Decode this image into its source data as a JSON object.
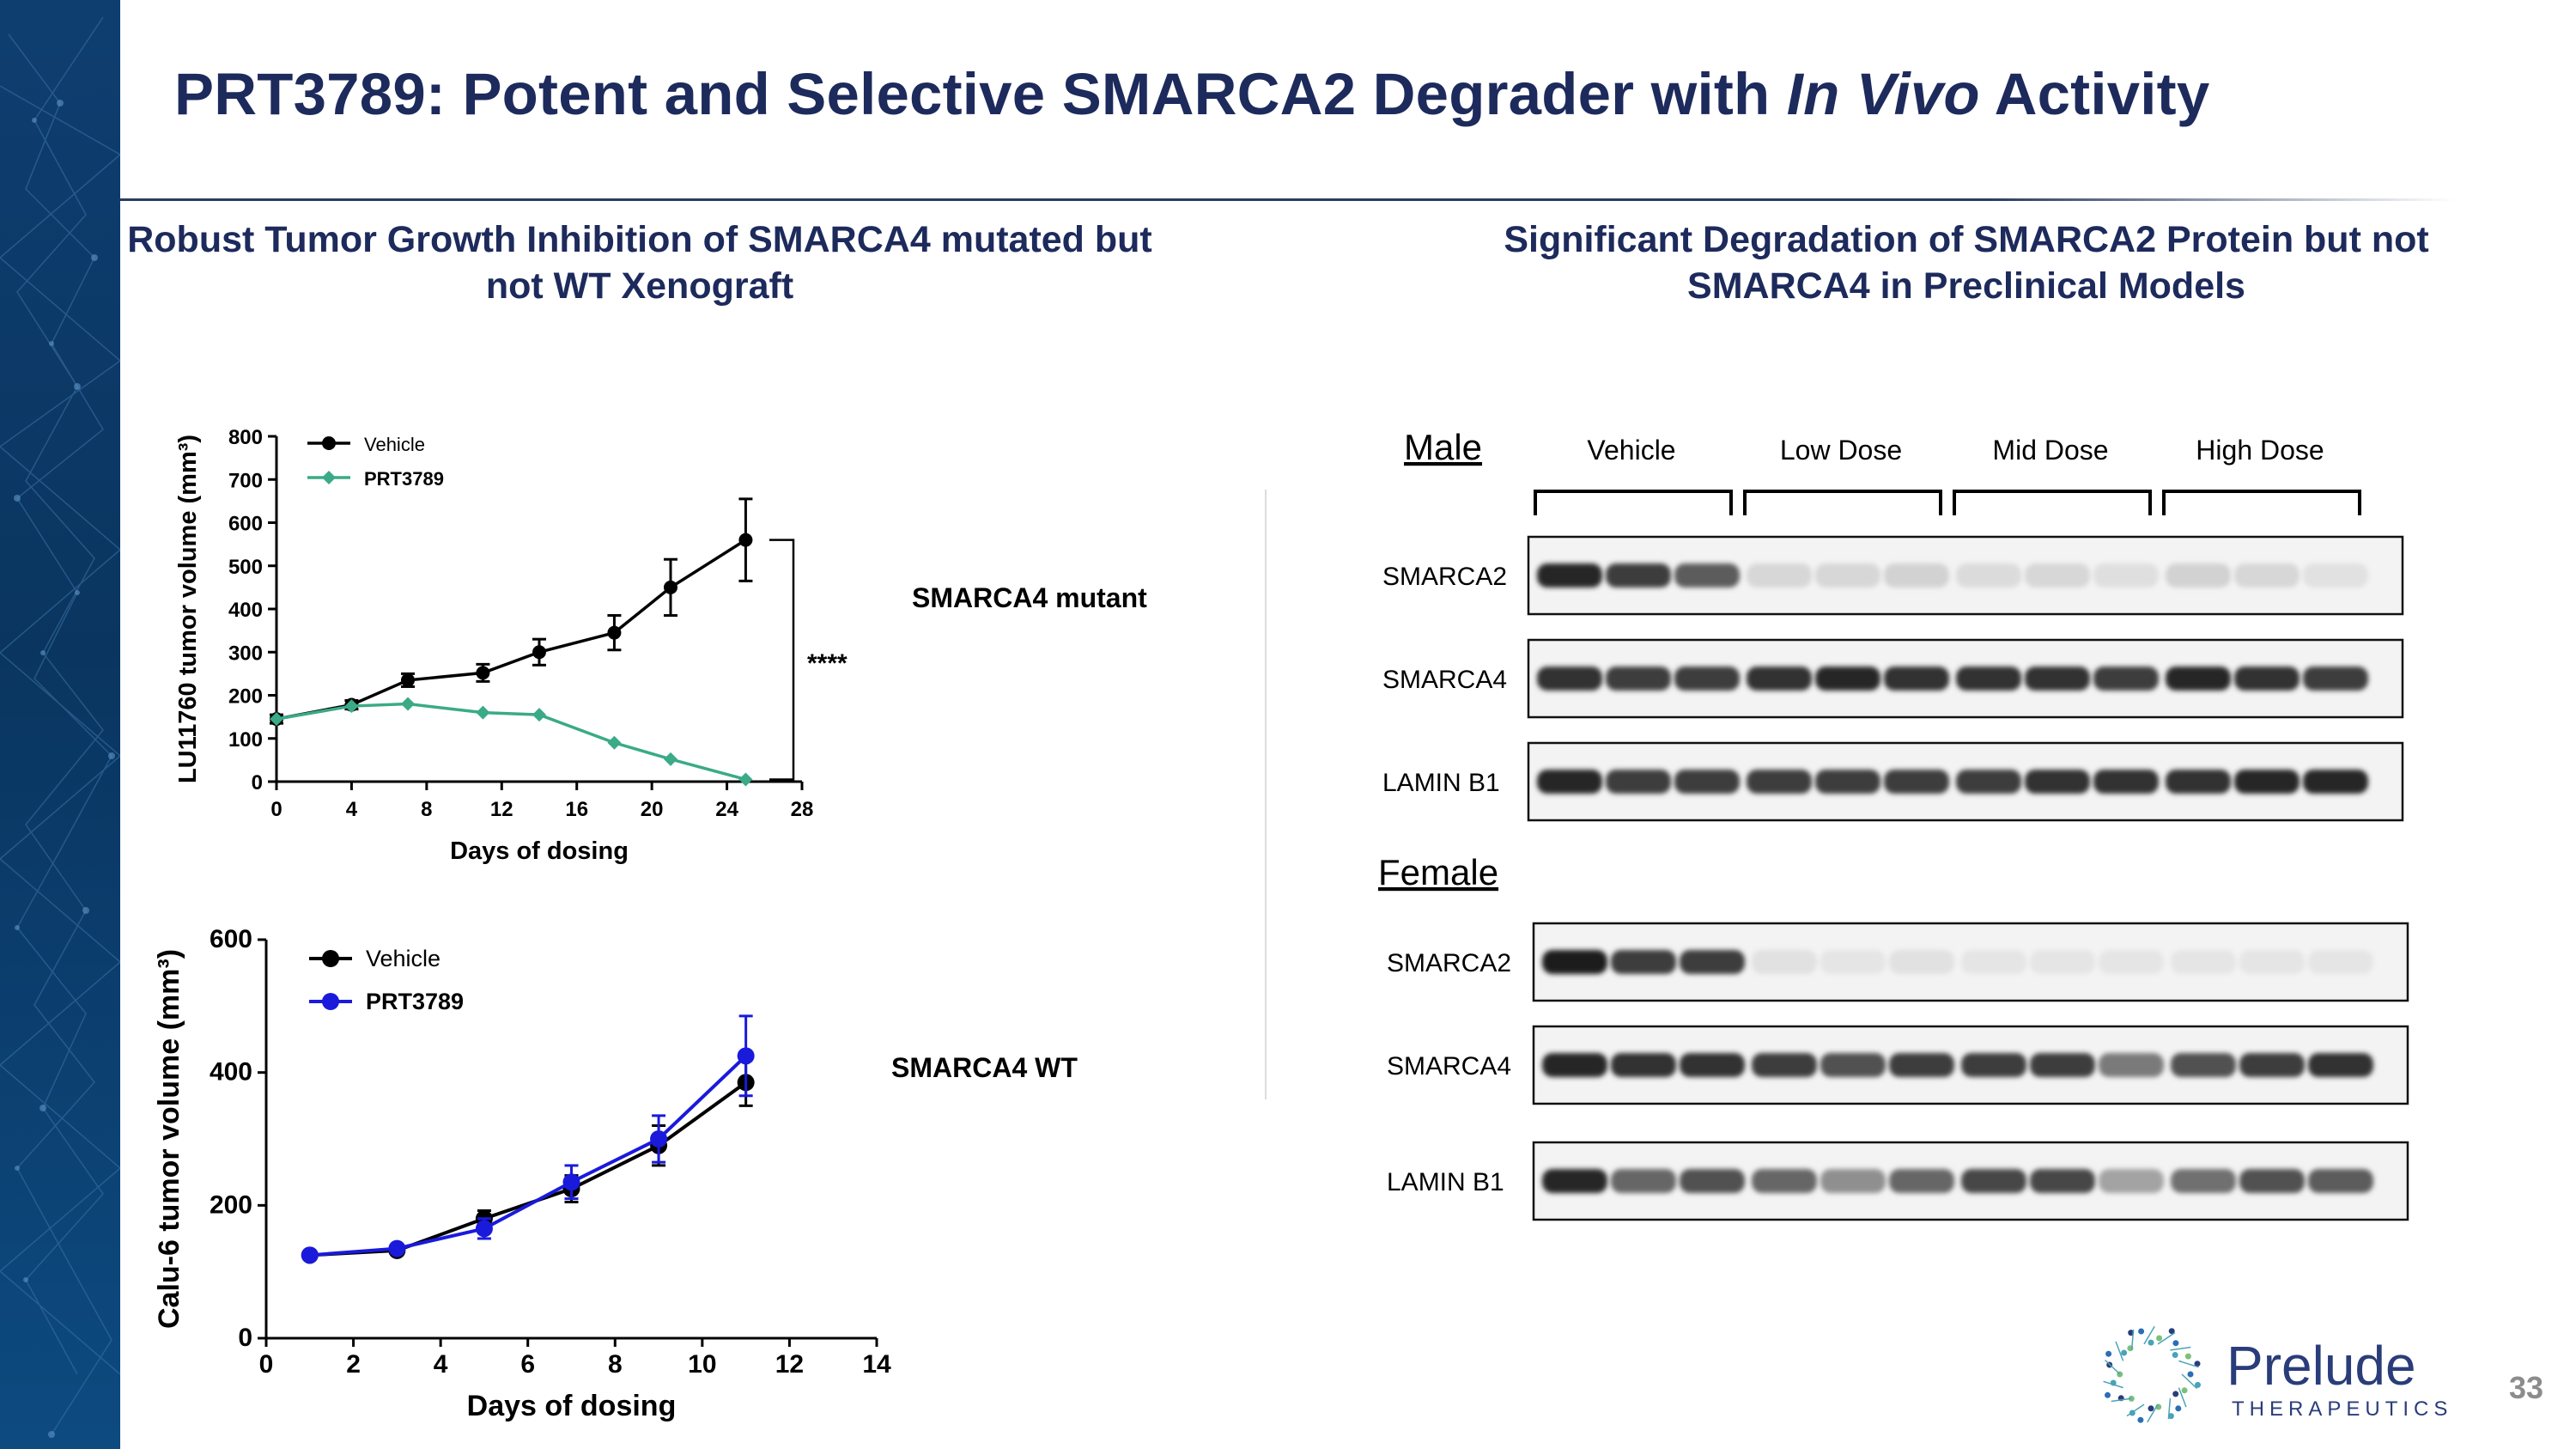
{
  "slide": {
    "title_main": "PRT3789: Potent and Selective SMARCA2 Degrader with ",
    "title_italic": "In Vivo",
    "title_end": " Activity",
    "left_heading": "Robust Tumor Growth Inhibition of SMARCA4 mutated but not WT Xenograft",
    "right_heading": "Significant Degradation of SMARCA2 Protein but not SMARCA4 in Preclinical Models",
    "label_mutant": "SMARCA4 mutant",
    "label_wt": "SMARCA4 WT",
    "page_number": "33"
  },
  "logo": {
    "name": "Prelude",
    "subtitle": "THERAPEUTICS"
  },
  "chart_data": [
    {
      "type": "line",
      "xlabel": "Days of dosing",
      "ylabel": "LU11760 tumor volume (mm³)",
      "xlim": [
        0,
        28
      ],
      "ylim": [
        0,
        800
      ],
      "xticks": [
        0,
        4,
        8,
        12,
        16,
        20,
        24,
        28
      ],
      "yticks": [
        0,
        100,
        200,
        300,
        400,
        500,
        600,
        700,
        800
      ],
      "significance": "****",
      "series": [
        {
          "name": "Vehicle",
          "color": "#000000",
          "x": [
            0,
            4,
            7,
            11,
            14,
            18,
            21,
            25
          ],
          "y": [
            145,
            178,
            235,
            252,
            300,
            345,
            450,
            560
          ],
          "err": [
            10,
            10,
            15,
            20,
            30,
            40,
            65,
            95
          ]
        },
        {
          "name": "PRT3789",
          "color": "#3aaa87",
          "x": [
            0,
            4,
            7,
            11,
            14,
            18,
            21,
            25
          ],
          "y": [
            145,
            175,
            180,
            160,
            155,
            90,
            52,
            5
          ],
          "err": [
            0,
            0,
            0,
            0,
            0,
            0,
            0,
            0
          ]
        }
      ]
    },
    {
      "type": "line",
      "xlabel": "Days of dosing",
      "ylabel": "Calu-6 tumor volume (mm³)",
      "xlim": [
        0,
        14
      ],
      "ylim": [
        0,
        600
      ],
      "xticks": [
        0,
        2,
        4,
        6,
        8,
        10,
        12,
        14
      ],
      "yticks": [
        0,
        200,
        400,
        600
      ],
      "series": [
        {
          "name": "Vehicle",
          "color": "#000000",
          "x": [
            1,
            3,
            5,
            7,
            9,
            11
          ],
          "y": [
            125,
            132,
            180,
            225,
            290,
            385
          ],
          "err": [
            0,
            5,
            12,
            20,
            30,
            35
          ]
        },
        {
          "name": "PRT3789",
          "color": "#1a1adb",
          "x": [
            1,
            3,
            5,
            7,
            9,
            11
          ],
          "y": [
            125,
            135,
            165,
            235,
            300,
            425
          ],
          "err": [
            0,
            5,
            15,
            25,
            35,
            60
          ]
        }
      ]
    }
  ],
  "western_blot": {
    "groups": [
      "Vehicle",
      "Low Dose",
      "Mid Dose",
      "High Dose"
    ],
    "panels": [
      {
        "title": "Male",
        "rows": [
          {
            "name": "SMARCA2",
            "intensity": [
              0.95,
              0.85,
              0.7,
              0.1,
              0.1,
              0.12,
              0.08,
              0.1,
              0.06,
              0.12,
              0.1,
              0.05
            ]
          },
          {
            "name": "SMARCA4",
            "intensity": [
              0.9,
              0.85,
              0.85,
              0.9,
              0.95,
              0.9,
              0.9,
              0.9,
              0.85,
              0.95,
              0.9,
              0.85
            ]
          },
          {
            "name": "LAMIN B1",
            "intensity": [
              0.95,
              0.85,
              0.85,
              0.85,
              0.85,
              0.85,
              0.85,
              0.9,
              0.9,
              0.9,
              0.95,
              0.95
            ]
          }
        ]
      },
      {
        "title": "Female",
        "rows": [
          {
            "name": "SMARCA2",
            "intensity": [
              1.0,
              0.85,
              0.85,
              0.05,
              0.03,
              0.05,
              0.03,
              0.03,
              0.03,
              0.03,
              0.03,
              0.03
            ]
          },
          {
            "name": "SMARCA4",
            "intensity": [
              0.95,
              0.9,
              0.9,
              0.85,
              0.75,
              0.85,
              0.85,
              0.85,
              0.55,
              0.75,
              0.85,
              0.9
            ]
          },
          {
            "name": "LAMIN B1",
            "intensity": [
              0.95,
              0.65,
              0.75,
              0.65,
              0.45,
              0.65,
              0.8,
              0.8,
              0.35,
              0.6,
              0.75,
              0.7
            ]
          }
        ]
      }
    ]
  }
}
